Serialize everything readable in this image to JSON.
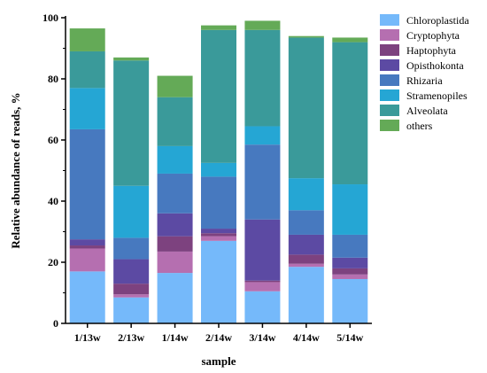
{
  "chart_data": {
    "type": "bar",
    "stacked": true,
    "title": "",
    "xlabel": "sample",
    "ylabel": "Relative abundance of reads, %",
    "ylim": [
      0,
      100
    ],
    "yticks": [
      0,
      20,
      40,
      60,
      80,
      100
    ],
    "legend_position": "right",
    "grid": false,
    "categories": [
      "1/13w",
      "2/13w",
      "1/14w",
      "2/14w",
      "3/14w",
      "4/14w",
      "5/14w"
    ],
    "series": [
      {
        "name": "Chloroplastida",
        "color": "#75b9fa",
        "values": [
          17,
          8.5,
          16.5,
          27,
          10.5,
          18.5,
          14.5
        ]
      },
      {
        "name": "Cryptophyta",
        "color": "#b56fb0",
        "values": [
          7.5,
          1,
          7,
          1.5,
          3,
          1,
          1.5
        ]
      },
      {
        "name": "Haptophyta",
        "color": "#7d427f",
        "values": [
          1,
          3.5,
          5,
          1,
          0.5,
          3,
          2
        ]
      },
      {
        "name": "Opisthokonta",
        "color": "#5c4aa3",
        "values": [
          2,
          8,
          7.5,
          1.5,
          20,
          6.5,
          3.5
        ]
      },
      {
        "name": "Rhizaria",
        "color": "#4779bf",
        "values": [
          36,
          7,
          13,
          17,
          24.5,
          8,
          7.5
        ]
      },
      {
        "name": "Stramenopiles",
        "color": "#25a6d4",
        "values": [
          13.5,
          17,
          9,
          4.5,
          6,
          10.5,
          16.5
        ]
      },
      {
        "name": "Alveolata",
        "color": "#3a9a9a",
        "values": [
          12,
          41,
          16,
          43.5,
          31.5,
          46,
          46.5
        ]
      },
      {
        "name": "others",
        "color": "#64aa57",
        "values": [
          7.5,
          1,
          7,
          1.5,
          3,
          0.5,
          1.5
        ]
      }
    ]
  }
}
